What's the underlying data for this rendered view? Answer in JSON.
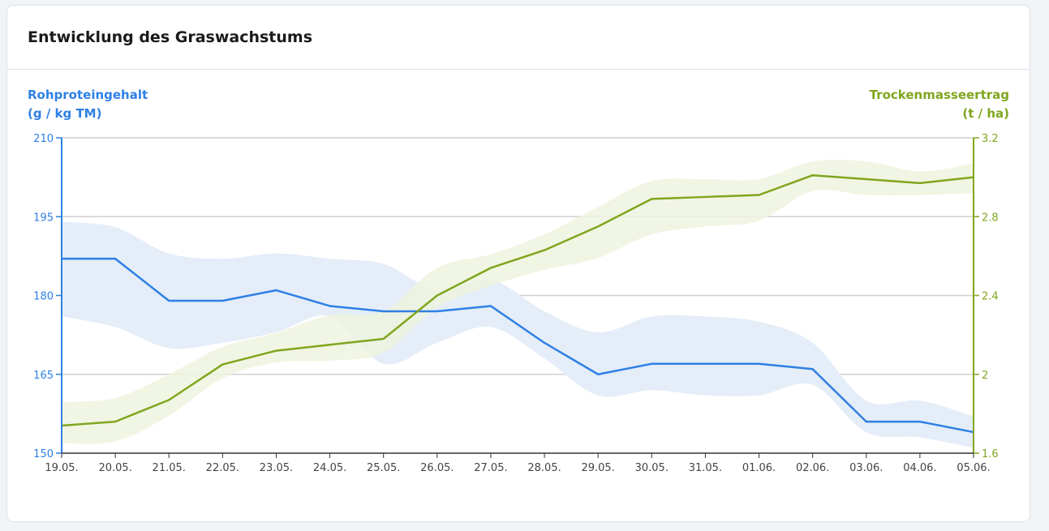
{
  "card": {
    "title": "Entwicklung des Graswachstums"
  },
  "chart_data": {
    "type": "line",
    "categories": [
      "19.05.",
      "20.05.",
      "21.05.",
      "22.05.",
      "23.05.",
      "24.05.",
      "25.05.",
      "26.05.",
      "27.05.",
      "28.05.",
      "29.05.",
      "30.05.",
      "31.05.",
      "01.06.",
      "02.06.",
      "03.06.",
      "04.06.",
      "05.06."
    ],
    "left_axis": {
      "label_line1": "Rohproteingehalt",
      "label_line2": "(g / kg TM)",
      "range": [
        150,
        210
      ],
      "ticks": [
        "150",
        "165",
        "180",
        "195",
        "210"
      ],
      "color": "#2f80e4"
    },
    "right_axis": {
      "label_line1": "Trockenmasseertrag",
      "label_line2": "(t / ha)",
      "range": [
        1.6,
        3.2
      ],
      "ticks": [
        "1.6",
        "2",
        "2.4",
        "2.8",
        "3.2"
      ],
      "color": "#7fa61e"
    },
    "grid": true,
    "series": [
      {
        "axis": "left",
        "color": "#2f80e4",
        "band_color": "#e4edf8",
        "values": [
          187,
          187,
          179,
          179,
          181,
          178,
          177,
          177,
          178,
          171,
          165,
          167,
          167,
          167,
          166,
          156,
          156,
          154
        ],
        "band_upper": [
          194,
          193,
          188,
          187,
          188,
          187,
          186,
          181,
          183,
          177,
          173,
          176,
          176,
          175,
          171,
          160,
          160,
          157
        ],
        "band_lower": [
          176,
          174,
          170,
          171,
          173,
          176,
          167,
          171,
          174,
          168,
          161,
          162,
          161,
          161,
          163,
          154,
          153,
          151
        ]
      },
      {
        "axis": "right",
        "color": "#7fa61e",
        "band_color": "#eef3de",
        "values": [
          1.74,
          1.76,
          1.87,
          2.05,
          2.12,
          2.15,
          2.18,
          2.4,
          2.54,
          2.63,
          2.75,
          2.89,
          2.9,
          2.91,
          3.01,
          2.99,
          2.97,
          3.0
        ],
        "band_upper": [
          1.86,
          1.88,
          2.0,
          2.14,
          2.21,
          2.3,
          2.32,
          2.54,
          2.61,
          2.71,
          2.85,
          2.98,
          2.99,
          2.99,
          3.08,
          3.08,
          3.03,
          3.07
        ],
        "band_lower": [
          1.65,
          1.66,
          1.79,
          1.98,
          2.06,
          2.07,
          2.11,
          2.34,
          2.45,
          2.53,
          2.59,
          2.71,
          2.75,
          2.78,
          2.93,
          2.91,
          2.91,
          2.92
        ]
      }
    ]
  }
}
